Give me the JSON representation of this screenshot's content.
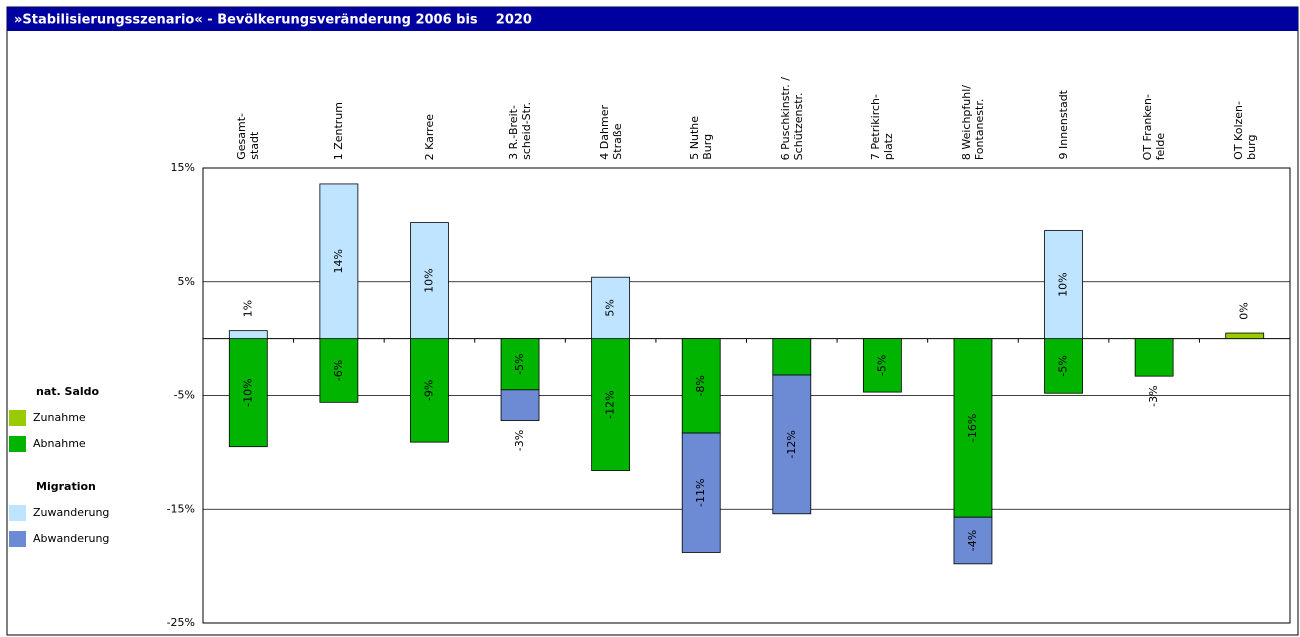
{
  "chart_data": {
    "type": "bar",
    "title": "»Stabilisierungsszenario« - Bevölkerungsveränderung 2006 bis    2020",
    "categories": [
      "Gesamt-\nstadt",
      "1 Zentrum",
      "2 Karree",
      "3 R.-Breit-\nscheid-Str.",
      "4 Dahmer\nStraße",
      "5 Nuthe\nBurg",
      "6 Puschkinstr. /\nSchützenstr.",
      "7 Petrikirch-\nplatz",
      "8 Weichpfuhl/\nFontanestr.",
      "9 Innenstadt",
      "OT Franken-\nfelde",
      "OT Kolzen-\nburg"
    ],
    "legend_groups": [
      {
        "title": "nat. Saldo",
        "series": [
          0,
          1
        ]
      },
      {
        "title": "Migration",
        "series": [
          2,
          3
        ]
      }
    ],
    "series": [
      {
        "name": "Zunahme",
        "color": "#99cc00",
        "values": [
          null,
          null,
          null,
          null,
          null,
          null,
          null,
          null,
          null,
          null,
          null,
          0.49
        ],
        "value_labels": [
          null,
          null,
          null,
          null,
          null,
          null,
          null,
          null,
          null,
          null,
          null,
          "0%"
        ]
      },
      {
        "name": "Abnahme",
        "color": "#00b400",
        "values": [
          -9.5,
          -5.6,
          -9.1,
          -4.5,
          -11.6,
          -8.3,
          -3.2,
          -4.7,
          -15.7,
          -4.8,
          -3.3,
          null
        ],
        "value_labels": [
          "-10%",
          "-6%",
          "-9%",
          "-5%",
          "-12%",
          "-8%",
          "-3%",
          "-5%",
          "-16%",
          "-5%",
          "-3%",
          null
        ]
      },
      {
        "name": "Zuwanderung",
        "color": "#bfe4ff",
        "values": [
          0.7,
          13.6,
          10.2,
          null,
          5.4,
          null,
          null,
          null,
          null,
          9.5,
          null,
          null
        ],
        "value_labels": [
          "1%",
          "14%",
          "10%",
          null,
          "5%",
          null,
          null,
          null,
          null,
          "10%",
          null,
          null
        ]
      },
      {
        "name": "Abwanderung",
        "color": "#6d8ad4",
        "values": [
          null,
          null,
          null,
          -2.7,
          null,
          -10.5,
          -12.2,
          null,
          -4.1,
          null,
          null,
          null
        ],
        "value_labels": [
          null,
          null,
          null,
          "-3%",
          null,
          "-11%",
          "-12%",
          null,
          "-4%",
          null,
          null,
          null
        ]
      }
    ],
    "ylim": [
      -25,
      15
    ],
    "yticks": [
      {
        "value": 15,
        "label": "15%"
      },
      {
        "value": 5,
        "label": "5%"
      },
      {
        "value": -5,
        "label": "-5%"
      },
      {
        "value": -15,
        "label": "-15%"
      },
      {
        "value": -25,
        "label": "-25%"
      }
    ],
    "grid": true
  }
}
